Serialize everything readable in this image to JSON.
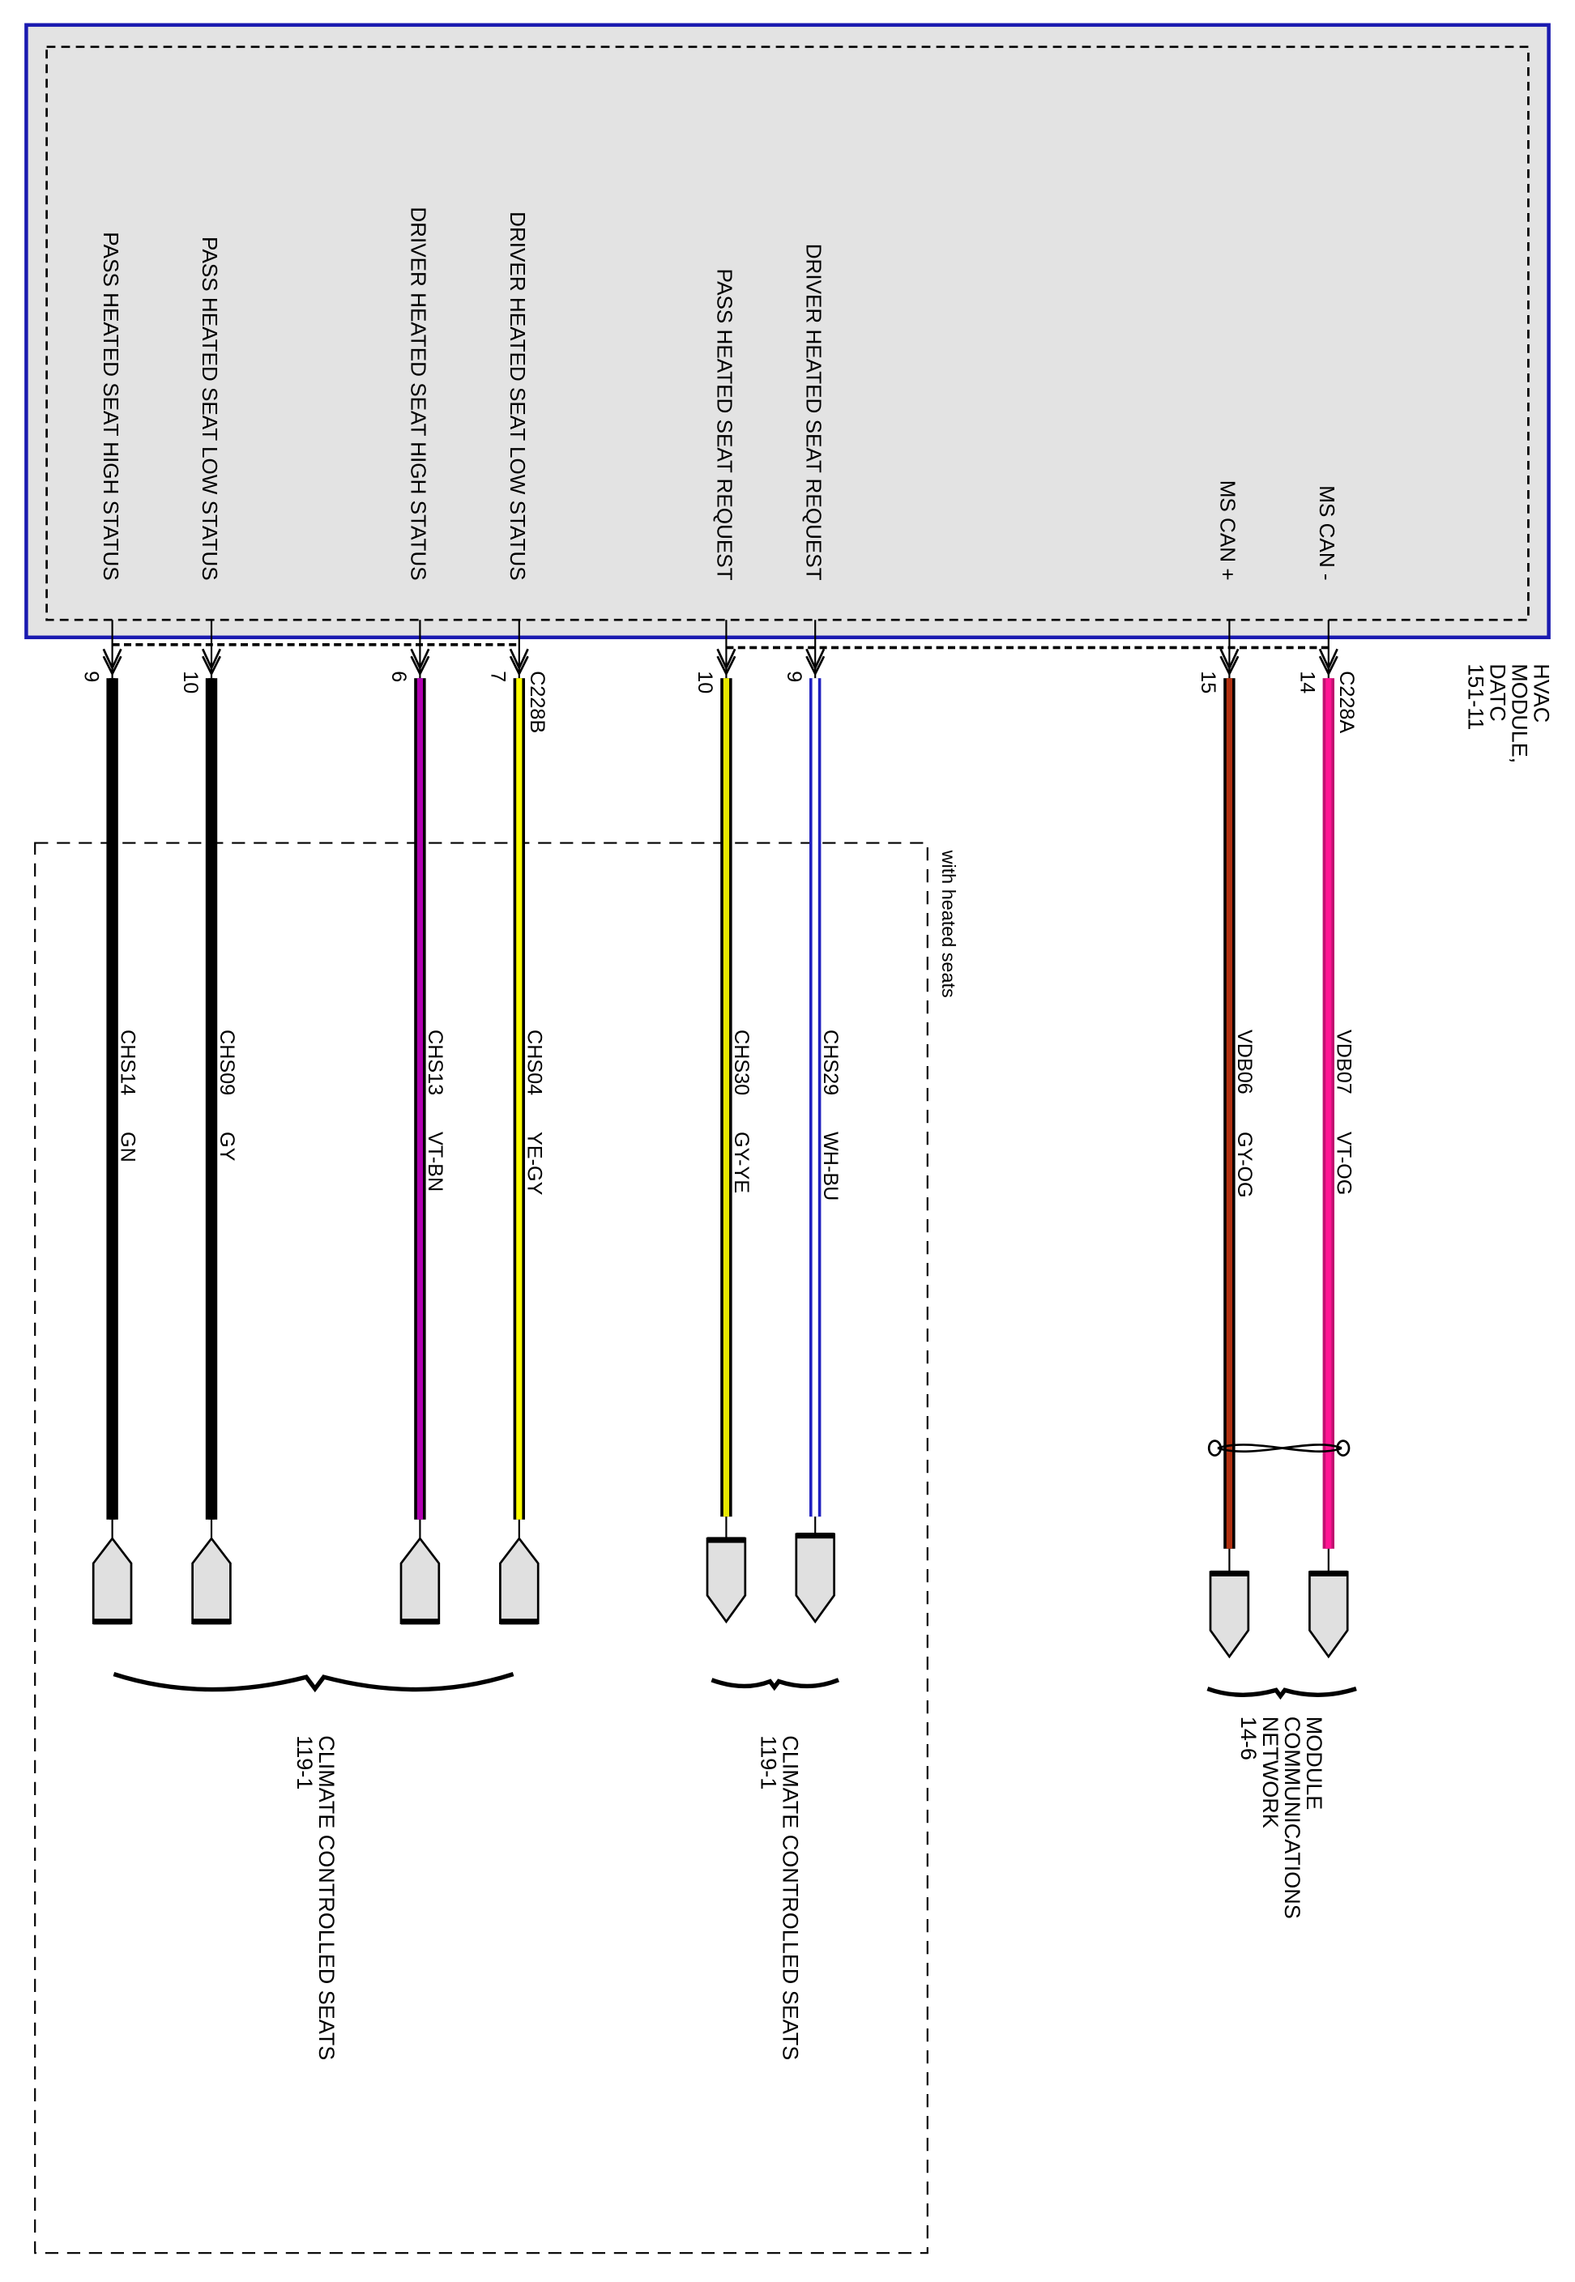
{
  "module": {
    "name_lines": [
      "HVAC",
      "MODULE,",
      "DATC",
      "151-11"
    ],
    "connector_b": "C228B",
    "connector_a": "C228A"
  },
  "optional_group_label": "with heated seats",
  "wires": [
    {
      "signal": "PASS HEATED SEAT HIGH STATUS",
      "pin": "9",
      "circuit": "CHS14",
      "color_code": "GN",
      "main": "#000000",
      "stripe": "#000000",
      "end": "up"
    },
    {
      "signal": "PASS HEATED SEAT LOW STATUS",
      "pin": "10",
      "circuit": "CHS09",
      "color_code": "GY",
      "main": "#000000",
      "stripe": "#000000",
      "end": "up"
    },
    {
      "signal": "DRIVER HEATED SEAT HIGH STATUS",
      "pin": "6",
      "circuit": "CHS13",
      "color_code": "VT-BN",
      "main": "#b000b0",
      "stripe": "#000000",
      "end": "up"
    },
    {
      "signal": "DRIVER HEATED SEAT LOW STATUS",
      "pin": "7",
      "circuit": "CHS04",
      "color_code": "YE-GY",
      "main": "#ffff00",
      "stripe": "#000000",
      "end": "up"
    },
    {
      "signal": "PASS HEATED SEAT REQUEST",
      "pin": "10",
      "circuit": "CHS30",
      "color_code": "GY-YE",
      "main": "#e8e800",
      "stripe": "#000000",
      "end": "down"
    },
    {
      "signal": "DRIVER HEATED SEAT REQUEST",
      "pin": "9",
      "circuit": "CHS29",
      "color_code": "WH-BU",
      "main": "#ffffff",
      "stripe": "#2020c0",
      "end": "down"
    },
    {
      "signal": "MS CAN +",
      "pin": "15",
      "circuit": "VDB06",
      "color_code": "GY-OG",
      "main": "#b03010",
      "stripe": "#000000",
      "end": "down"
    },
    {
      "signal": "MS CAN -",
      "pin": "14",
      "circuit": "VDB07",
      "color_code": "VT-OG",
      "main": "#ff1493",
      "stripe": "#c01070",
      "end": "down"
    }
  ],
  "destinations": [
    {
      "lines": [
        "CLIMATE CONTROLLED SEATS",
        "119-1"
      ]
    },
    {
      "lines": [
        "CLIMATE CONTROLLED SEATS",
        "119-1"
      ]
    },
    {
      "lines": [
        "MODULE",
        "COMMUNICATIONS",
        "NETWORK",
        "14-6"
      ]
    }
  ],
  "colors": {
    "module_border": "#1a1ab0",
    "module_fill": "#e3e3e3",
    "connector_fill": "#e0e0e0"
  }
}
